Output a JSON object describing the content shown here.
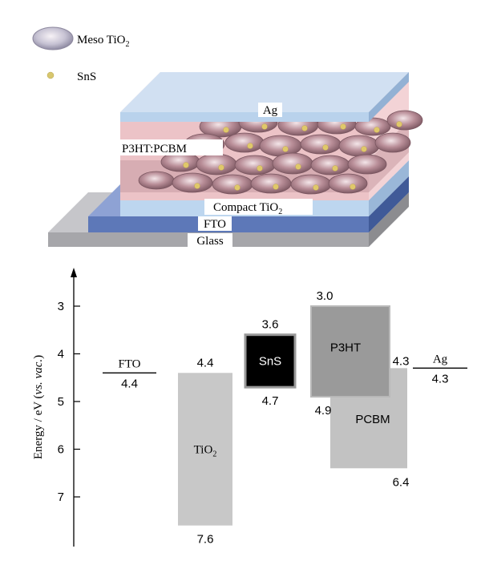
{
  "legend": {
    "items": [
      {
        "label": "Meso TiO",
        "sub": "2",
        "symbol": "meso-tio2-ellipse"
      },
      {
        "label": "SnS",
        "symbol": "sns-dot"
      }
    ]
  },
  "device": {
    "layers": [
      {
        "name": "Ag",
        "color": "#b9d2ec"
      },
      {
        "name": "P3HT:PCBM",
        "color": "#e8b8bd"
      },
      {
        "name": "Compact TiO",
        "sub": "2",
        "color": "#bdd6ef"
      },
      {
        "name": "FTO",
        "color": "#5d78b8"
      },
      {
        "name": "Glass",
        "color": "#a6a6aa"
      }
    ]
  },
  "chart_data": {
    "type": "energy-level-diagram",
    "ylabel_main": "Energy / eV (",
    "ylabel_italic": "vs. vac.",
    "ylabel_end": ")",
    "ylim": [
      2.0,
      8.0
    ],
    "y_inverted": true,
    "yticks": [
      "3",
      "4",
      "5",
      "6",
      "7"
    ],
    "contacts": [
      {
        "name": "FTO",
        "level": 4.4,
        "level_label": "4.4"
      },
      {
        "name": "Ag",
        "level": 4.3,
        "level_label": "4.3"
      }
    ],
    "materials": [
      {
        "name": "TiO",
        "sub": "2",
        "top": 4.4,
        "bottom": 7.6,
        "top_label": "4.4",
        "bottom_label": "7.6",
        "color": "#c8c8c8",
        "text_color": "#000000"
      },
      {
        "name": "SnS",
        "top": 3.6,
        "bottom": 4.7,
        "top_label": "3.6",
        "bottom_label": "4.7",
        "color": "#000000",
        "text_color": "#ffffff"
      },
      {
        "name": "PCBM",
        "top": 4.3,
        "bottom": 6.4,
        "top_label": "4.3",
        "bottom_label": "6.4",
        "color": "#c2c2c2",
        "text_color": "#000000"
      },
      {
        "name": "P3HT",
        "top": 3.0,
        "bottom": 4.9,
        "top_label": "3.0",
        "bottom_label": "4.9",
        "color": "#9a9a9a",
        "text_color": "#000000"
      }
    ]
  }
}
